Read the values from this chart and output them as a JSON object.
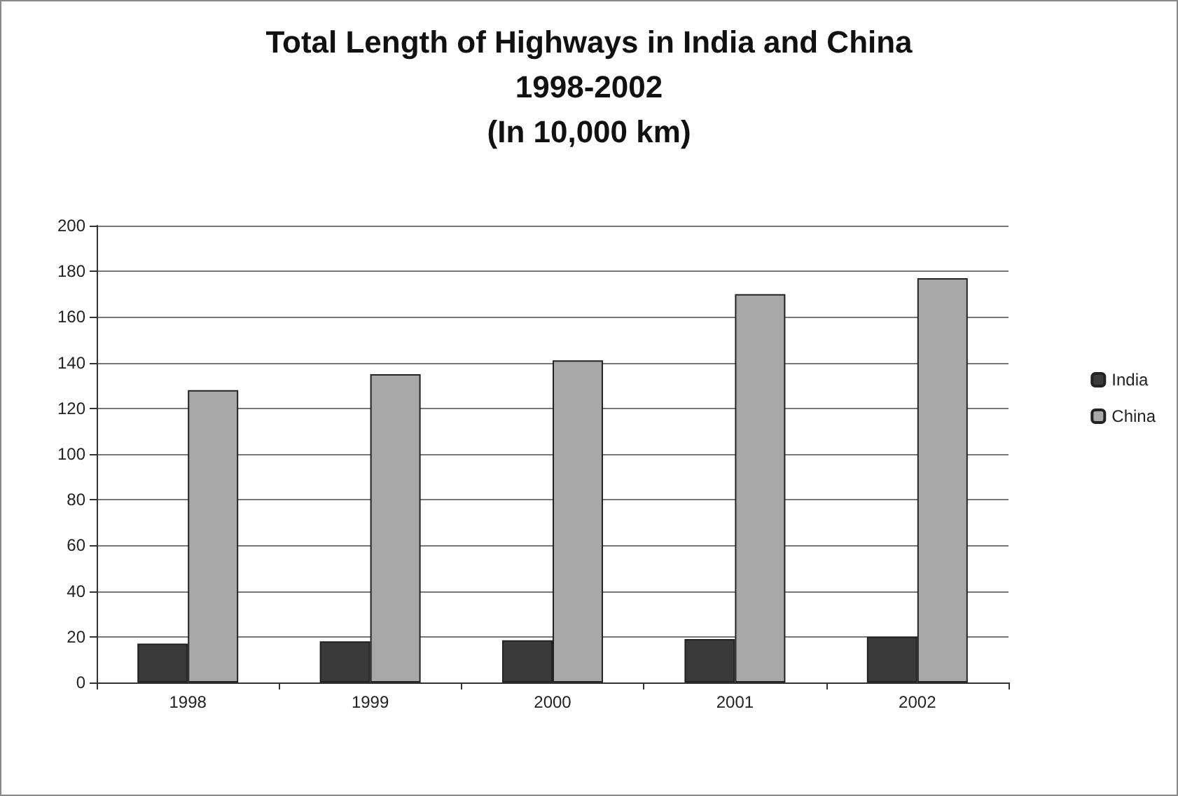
{
  "chart_data": {
    "type": "bar",
    "title": "Total Length of Highways in India and China\n1998-2002\n(In 10,000 km)",
    "categories": [
      "1998",
      "1999",
      "2000",
      "2001",
      "2002"
    ],
    "series": [
      {
        "name": "India",
        "color": "#3a3a3a",
        "values": [
          17,
          18,
          18.5,
          19,
          20
        ]
      },
      {
        "name": "China",
        "color": "#a8a8a8",
        "values": [
          128,
          135,
          141,
          170,
          177
        ]
      }
    ],
    "ylim": [
      0,
      200
    ],
    "yticks": [
      0,
      20,
      40,
      60,
      80,
      100,
      120,
      140,
      160,
      180,
      200
    ],
    "grid": "y",
    "legend": "right"
  }
}
